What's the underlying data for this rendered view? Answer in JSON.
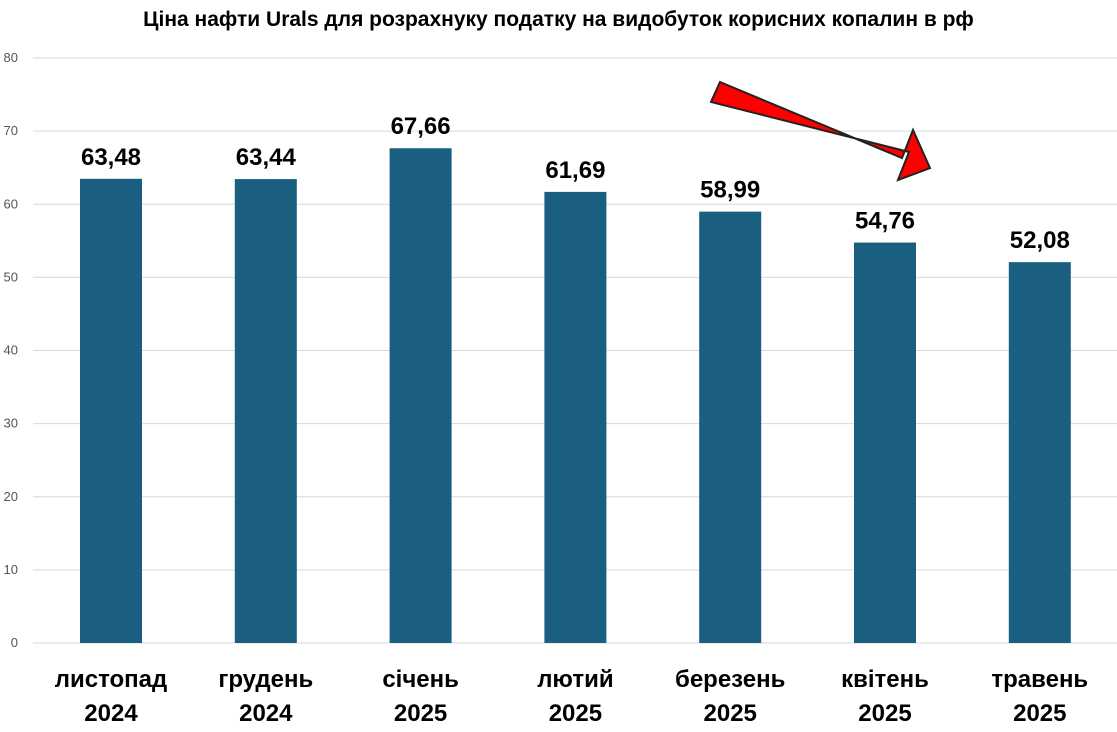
{
  "chart_data": {
    "type": "bar",
    "title": "Ціна нафти Urals для розрахнуку податку  на видобуток корисних копалин в рф",
    "categories": [
      [
        "листопад",
        "2024"
      ],
      [
        "грудень",
        "2024"
      ],
      [
        "січень",
        "2025"
      ],
      [
        "лютий",
        "2025"
      ],
      [
        "березень",
        "2025"
      ],
      [
        "квітень",
        "2025"
      ],
      [
        "травень",
        "2025"
      ]
    ],
    "values": [
      63.48,
      63.44,
      67.66,
      61.69,
      58.99,
      54.76,
      52.08
    ],
    "data_labels": [
      "63,48",
      "63,44",
      "67,66",
      "61,69",
      "58,99",
      "54,76",
      "52,08"
    ],
    "yticks": [
      0,
      10,
      20,
      30,
      40,
      50,
      60,
      70,
      80
    ],
    "ylim": [
      0,
      80
    ],
    "grid": true,
    "legend": "none",
    "bar_color": "#1a5e80",
    "arrow_color": "#ff0000",
    "annotation": "downward-trend-arrow"
  }
}
